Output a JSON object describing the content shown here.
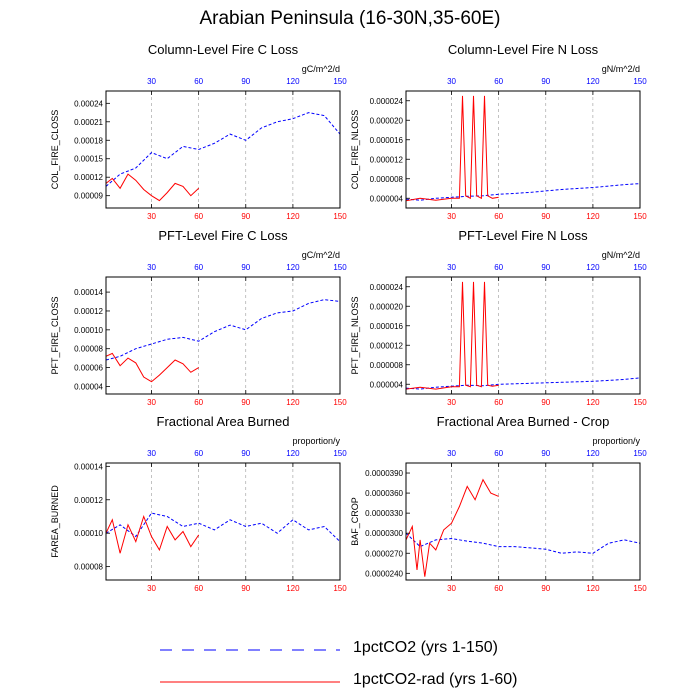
{
  "title": "Arabian Peninsula (16-30N,35-60E)",
  "legend": [
    {
      "label": "1pctCO2 (yrs 1-150)",
      "color": "#0000ff",
      "dash": "dashed"
    },
    {
      "label": "1pctCO2-rad (yrs 1-60)",
      "color": "#ff0000",
      "dash": "solid"
    }
  ],
  "chart_data": [
    {
      "type": "line",
      "title": "Column-Level Fire C Loss",
      "ylabel": "COL_FIRE_CLOSS",
      "units": "gC/m^2/d",
      "xlim": [
        1,
        150
      ],
      "ylim": [
        7e-05,
        0.00026
      ],
      "yticks": [
        9e-05,
        0.00012,
        0.00015,
        0.00018,
        0.00021,
        0.00024
      ],
      "yticklabels": [
        "0.00009",
        "0.00012",
        "0.00015",
        "0.00018",
        "0.00021",
        "0.00024"
      ],
      "xticks": [
        30,
        60,
        90,
        120,
        150
      ],
      "series": [
        {
          "x": [
            1,
            10,
            20,
            30,
            40,
            50,
            60,
            70,
            80,
            90,
            100,
            110,
            120,
            130,
            140,
            150
          ],
          "y": [
            0.000105,
            0.000125,
            0.000135,
            0.00016,
            0.00015,
            0.00017,
            0.000165,
            0.000175,
            0.00019,
            0.00018,
            0.0002,
            0.00021,
            0.000215,
            0.000225,
            0.00022,
            0.00019
          ]
        },
        {
          "x": [
            1,
            5,
            10,
            15,
            20,
            25,
            30,
            35,
            40,
            45,
            50,
            55,
            60
          ],
          "y": [
            0.00011,
            0.000118,
            0.000102,
            0.000125,
            0.000115,
            0.0001,
            9e-05,
            8.2e-05,
            9.5e-05,
            0.00011,
            0.000105,
            9e-05,
            0.000102
          ]
        }
      ]
    },
    {
      "type": "line",
      "title": "Column-Level Fire N Loss",
      "ylabel": "COL_FIRE_NLOSS",
      "units": "gN/m^2/d",
      "xlim": [
        1,
        150
      ],
      "ylim": [
        2e-06,
        2.6e-05
      ],
      "yticks": [
        4e-06,
        8e-06,
        1.2e-05,
        1.6e-05,
        2e-05,
        2.4e-05
      ],
      "yticklabels": [
        "0.000004",
        "0.000008",
        "0.000012",
        "0.000016",
        "0.000020",
        "0.000024"
      ],
      "xticks": [
        30,
        60,
        90,
        120,
        150
      ],
      "series": [
        {
          "x": [
            1,
            10,
            20,
            30,
            40,
            50,
            60,
            70,
            80,
            90,
            100,
            110,
            120,
            130,
            140,
            150
          ],
          "y": [
            3.8e-06,
            3.6e-06,
            4e-06,
            4.2e-06,
            4.4e-06,
            4.5e-06,
            4.8e-06,
            5e-06,
            5.2e-06,
            5.5e-06,
            5.8e-06,
            6e-06,
            6.2e-06,
            6.5e-06,
            6.8e-06,
            7e-06
          ]
        },
        {
          "x": [
            1,
            10,
            20,
            30,
            35,
            37,
            39,
            42,
            44,
            46,
            49,
            51,
            53,
            56,
            60
          ],
          "y": [
            3.5e-06,
            4e-06,
            3.6e-06,
            4e-06,
            4e-06,
            2.5e-05,
            4.5e-06,
            4e-06,
            2.5e-05,
            4.5e-06,
            4e-06,
            2.5e-05,
            4.5e-06,
            4e-06,
            4.2e-06
          ]
        }
      ]
    },
    {
      "type": "line",
      "title": "PFT-Level Fire C Loss",
      "ylabel": "PFT_FIRE_CLOSS",
      "units": "gC/m^2/d",
      "xlim": [
        1,
        150
      ],
      "ylim": [
        3.2e-05,
        0.000156
      ],
      "yticks": [
        4e-05,
        6e-05,
        8e-05,
        0.0001,
        0.00012,
        0.00014
      ],
      "yticklabels": [
        "0.00004",
        "0.00006",
        "0.00008",
        "0.00010",
        "0.00012",
        "0.00014"
      ],
      "xticks": [
        30,
        60,
        90,
        120,
        150
      ],
      "series": [
        {
          "x": [
            1,
            10,
            20,
            30,
            40,
            50,
            60,
            70,
            80,
            90,
            100,
            110,
            120,
            130,
            140,
            150
          ],
          "y": [
            6.8e-05,
            7.2e-05,
            8e-05,
            8.5e-05,
            9e-05,
            9.2e-05,
            8.8e-05,
            9.8e-05,
            0.000105,
            0.0001,
            0.000112,
            0.000118,
            0.00012,
            0.000128,
            0.000132,
            0.00013
          ]
        },
        {
          "x": [
            1,
            5,
            10,
            15,
            20,
            25,
            30,
            35,
            40,
            45,
            50,
            55,
            60
          ],
          "y": [
            7.2e-05,
            7.5e-05,
            6.2e-05,
            7e-05,
            6.5e-05,
            5e-05,
            4.5e-05,
            5.2e-05,
            6e-05,
            6.8e-05,
            6.4e-05,
            5.5e-05,
            6e-05
          ]
        }
      ]
    },
    {
      "type": "line",
      "title": "PFT-Level Fire N Loss",
      "ylabel": "PFT_FIRE_NLOSS",
      "units": "gN/m^2/d",
      "xlim": [
        1,
        150
      ],
      "ylim": [
        2e-06,
        2.6e-05
      ],
      "yticks": [
        4e-06,
        8e-06,
        1.2e-05,
        1.6e-05,
        2e-05,
        2.4e-05
      ],
      "yticklabels": [
        "0.000004",
        "0.000008",
        "0.000012",
        "0.000016",
        "0.000020",
        "0.000024"
      ],
      "xticks": [
        30,
        60,
        90,
        120,
        150
      ],
      "series": [
        {
          "x": [
            1,
            10,
            20,
            30,
            40,
            50,
            60,
            70,
            80,
            90,
            100,
            110,
            120,
            130,
            140,
            150
          ],
          "y": [
            3.2e-06,
            3e-06,
            3.4e-06,
            3.6e-06,
            3.8e-06,
            3.7e-06,
            4e-06,
            4.1e-06,
            4.2e-06,
            4.3e-06,
            4.4e-06,
            4.5e-06,
            4.6e-06,
            4.8e-06,
            5e-06,
            5.3e-06
          ]
        },
        {
          "x": [
            1,
            10,
            20,
            30,
            35,
            37,
            39,
            42,
            44,
            46,
            49,
            51,
            53,
            56,
            60
          ],
          "y": [
            3e-06,
            3.4e-06,
            3e-06,
            3.5e-06,
            3.5e-06,
            2.5e-05,
            3.8e-06,
            3.5e-06,
            2.5e-05,
            3.8e-06,
            3.5e-06,
            2.5e-05,
            3.8e-06,
            3.6e-06,
            3.8e-06
          ]
        }
      ]
    },
    {
      "type": "line",
      "title": "Fractional Area Burned",
      "ylabel": "FAREA_BURNED",
      "units": "proportion/y",
      "xlim": [
        1,
        150
      ],
      "ylim": [
        7.2e-05,
        0.000142
      ],
      "yticks": [
        8e-05,
        0.0001,
        0.00012,
        0.00014
      ],
      "yticklabels": [
        "0.00008",
        "0.00010",
        "0.00012",
        "0.00014"
      ],
      "xticks": [
        30,
        60,
        90,
        120,
        150
      ],
      "series": [
        {
          "x": [
            1,
            10,
            20,
            30,
            40,
            50,
            60,
            70,
            80,
            90,
            100,
            110,
            120,
            130,
            140,
            150
          ],
          "y": [
            0.0001,
            0.000105,
            9.8e-05,
            0.000112,
            0.00011,
            0.000104,
            0.000106,
            0.000102,
            0.000108,
            0.000104,
            0.000106,
            0.0001,
            0.000108,
            0.000102,
            0.000104,
            9.5e-05
          ]
        },
        {
          "x": [
            1,
            5,
            10,
            15,
            20,
            25,
            30,
            35,
            40,
            45,
            50,
            55,
            60
          ],
          "y": [
            0.0001,
            0.000108,
            8.8e-05,
            0.000105,
            9.5e-05,
            0.00011,
            9.8e-05,
            9e-05,
            0.000104,
            9.6e-05,
            0.000101,
            9.2e-05,
            9.9e-05
          ]
        }
      ]
    },
    {
      "type": "line",
      "title": "Fractional Area Burned - Crop",
      "ylabel": "BAF_CROP",
      "units": "proportion/y",
      "xlim": [
        1,
        150
      ],
      "ylim": [
        2.3e-05,
        4.05e-05
      ],
      "yticks": [
        2.4e-05,
        2.7e-05,
        3e-05,
        3.3e-05,
        3.6e-05,
        3.9e-05
      ],
      "yticklabels": [
        "0.0000240",
        "0.0000270",
        "0.0000300",
        "0.0000330",
        "0.0000360",
        "0.0000390"
      ],
      "xticks": [
        30,
        60,
        90,
        120,
        150
      ],
      "series": [
        {
          "x": [
            1,
            10,
            20,
            30,
            40,
            50,
            60,
            70,
            80,
            90,
            100,
            110,
            120,
            130,
            140,
            150
          ],
          "y": [
            3e-05,
            2.8e-05,
            2.9e-05,
            2.92e-05,
            2.88e-05,
            2.85e-05,
            2.8e-05,
            2.8e-05,
            2.78e-05,
            2.76e-05,
            2.7e-05,
            2.72e-05,
            2.7e-05,
            2.85e-05,
            2.9e-05,
            2.85e-05
          ]
        },
        {
          "x": [
            1,
            5,
            8,
            10,
            13,
            16,
            20,
            25,
            30,
            35,
            40,
            45,
            50,
            55,
            60
          ],
          "y": [
            2.9e-05,
            3.1e-05,
            2.45e-05,
            2.9e-05,
            2.35e-05,
            2.85e-05,
            2.75e-05,
            3.05e-05,
            3.15e-05,
            3.4e-05,
            3.7e-05,
            3.5e-05,
            3.8e-05,
            3.6e-05,
            3.55e-05
          ]
        }
      ]
    }
  ]
}
